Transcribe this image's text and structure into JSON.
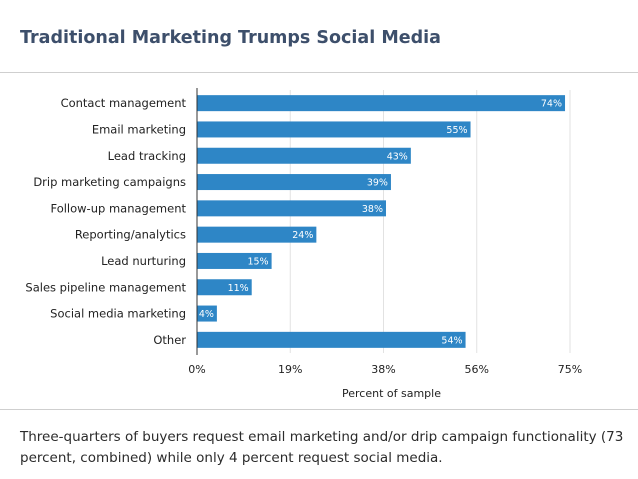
{
  "title": "Traditional Marketing Trumps Social Media",
  "caption": "Three-quarters of buyers request email marketing and/or drip campaign functionality (73 percent, combined) while only 4 percent request social media.",
  "colors": {
    "bar": "#2e86c6",
    "title": "#3d4f6b",
    "grid": "#e2e2e2",
    "axis": "#333333",
    "text": "#222222",
    "value_label": "#ffffff"
  },
  "chart_data": {
    "type": "bar",
    "orientation": "horizontal",
    "categories": [
      "Contact management",
      "Email marketing",
      "Lead tracking",
      "Drip marketing campaigns",
      "Follow-up management",
      "Reporting/analytics",
      "Lead nurturing",
      "Sales pipeline management",
      "Social media marketing",
      "Other"
    ],
    "values": [
      74,
      55,
      43,
      39,
      38,
      24,
      15,
      11,
      4,
      54
    ],
    "value_labels": [
      "74%",
      "55%",
      "43%",
      "39%",
      "38%",
      "24%",
      "15%",
      "11%",
      "4%",
      "54%"
    ],
    "xlabel": "Percent of sample",
    "xlim": [
      0,
      75
    ],
    "xticks": [
      0,
      18.75,
      37.5,
      56.25,
      75
    ],
    "xtick_labels": [
      "0%",
      "19%",
      "38%",
      "56%",
      "75%"
    ],
    "grid": true
  }
}
